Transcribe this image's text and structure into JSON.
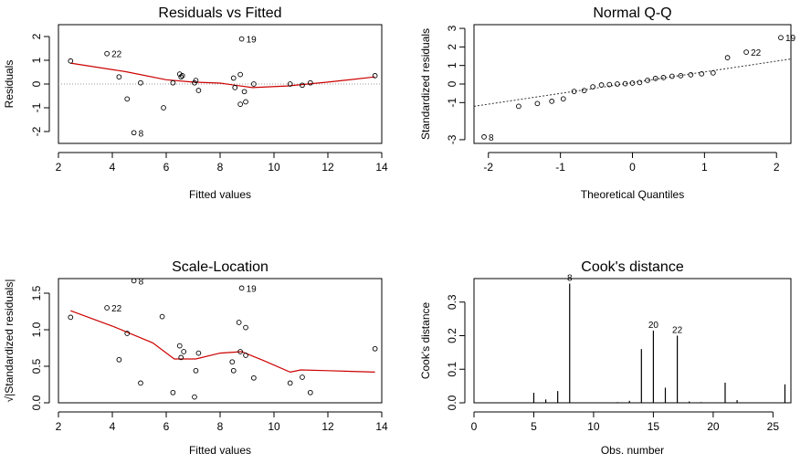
{
  "chart_data": [
    {
      "type": "scatter",
      "title": "Residuals vs Fitted",
      "xlabel": "Fitted values",
      "ylabel": "Residuals",
      "xlim": [
        2,
        14
      ],
      "ylim": [
        -2.5,
        2.5
      ],
      "xticks": [
        "2",
        "4",
        "6",
        "8",
        "10",
        "12",
        "14"
      ],
      "yticks": [
        "-2",
        "-1",
        "0",
        "1",
        "2"
      ],
      "points": [
        {
          "x": 2.45,
          "y": 0.97
        },
        {
          "x": 4.25,
          "y": 0.3
        },
        {
          "x": 4.55,
          "y": -0.63
        },
        {
          "x": 5.05,
          "y": 0.05
        },
        {
          "x": 5.9,
          "y": -1.0
        },
        {
          "x": 6.25,
          "y": 0.05
        },
        {
          "x": 6.5,
          "y": 0.42
        },
        {
          "x": 6.55,
          "y": 0.3
        },
        {
          "x": 6.6,
          "y": 0.35
        },
        {
          "x": 7.05,
          "y": 0.05
        },
        {
          "x": 7.1,
          "y": 0.15
        },
        {
          "x": 7.2,
          "y": -0.27
        },
        {
          "x": 8.5,
          "y": 0.25
        },
        {
          "x": 8.55,
          "y": -0.15
        },
        {
          "x": 8.75,
          "y": -0.85
        },
        {
          "x": 8.75,
          "y": 0.4
        },
        {
          "x": 8.9,
          "y": -0.32
        },
        {
          "x": 8.95,
          "y": -0.75
        },
        {
          "x": 9.25,
          "y": 0.0
        },
        {
          "x": 10.6,
          "y": 0.0
        },
        {
          "x": 11.05,
          "y": -0.05
        },
        {
          "x": 11.35,
          "y": 0.05
        },
        {
          "x": 13.75,
          "y": 0.35
        },
        {
          "x": 3.8,
          "y": 1.28,
          "label": "22"
        },
        {
          "x": 4.8,
          "y": -2.05,
          "label": "8"
        },
        {
          "x": 8.8,
          "y": 1.9,
          "label": "19"
        }
      ],
      "smooth": [
        [
          2.45,
          0.88
        ],
        [
          4.5,
          0.52
        ],
        [
          6.0,
          0.18
        ],
        [
          7.0,
          0.08
        ],
        [
          8.0,
          0.04
        ],
        [
          9.2,
          -0.15
        ],
        [
          10.5,
          -0.08
        ],
        [
          12.0,
          0.08
        ],
        [
          13.75,
          0.3
        ]
      ],
      "reference_y": 0
    },
    {
      "type": "scatter",
      "title": "Normal Q-Q",
      "xlabel": "Theoretical Quantiles",
      "ylabel": "Standardized residuals",
      "xlim": [
        -2.2,
        2.2
      ],
      "ylim": [
        -3.2,
        3.2
      ],
      "xticks": [
        "-2",
        "-1",
        "0",
        "1",
        "2"
      ],
      "yticks": [
        "-3",
        "-1",
        "0",
        "1",
        "2",
        "3"
      ],
      "points": [
        {
          "x": -1.58,
          "y": -1.2
        },
        {
          "x": -1.32,
          "y": -1.05
        },
        {
          "x": -1.12,
          "y": -0.93
        },
        {
          "x": -0.96,
          "y": -0.8
        },
        {
          "x": -0.81,
          "y": -0.4
        },
        {
          "x": -0.67,
          "y": -0.35
        },
        {
          "x": -0.55,
          "y": -0.15
        },
        {
          "x": -0.43,
          "y": -0.05
        },
        {
          "x": -0.32,
          "y": -0.03
        },
        {
          "x": -0.21,
          "y": 0.0
        },
        {
          "x": -0.1,
          "y": 0.02
        },
        {
          "x": 0.0,
          "y": 0.05
        },
        {
          "x": 0.1,
          "y": 0.08
        },
        {
          "x": 0.21,
          "y": 0.2
        },
        {
          "x": 0.32,
          "y": 0.3
        },
        {
          "x": 0.43,
          "y": 0.35
        },
        {
          "x": 0.55,
          "y": 0.42
        },
        {
          "x": 0.67,
          "y": 0.45
        },
        {
          "x": 0.81,
          "y": 0.5
        },
        {
          "x": 0.96,
          "y": 0.55
        },
        {
          "x": 1.12,
          "y": 0.6
        },
        {
          "x": 1.32,
          "y": 1.42
        },
        {
          "x": 1.58,
          "y": 1.72,
          "label": "22"
        },
        {
          "x": 2.06,
          "y": 2.5,
          "label": "19"
        },
        {
          "x": -2.06,
          "y": -2.85,
          "label": "8"
        }
      ],
      "reference_line": [
        [
          -2.2,
          -1.2
        ],
        [
          2.2,
          1.35
        ]
      ]
    },
    {
      "type": "scatter",
      "title": "Scale-Location",
      "xlabel": "Fitted values",
      "ylabel": "√|Standardized residuals|",
      "xlim": [
        2,
        14
      ],
      "ylim": [
        0,
        1.7
      ],
      "xticks": [
        "2",
        "4",
        "6",
        "8",
        "10",
        "12",
        "14"
      ],
      "yticks": [
        "0.0",
        "0.5",
        "1.0",
        "1.5"
      ],
      "points": [
        {
          "x": 2.45,
          "y": 1.17
        },
        {
          "x": 4.25,
          "y": 0.59
        },
        {
          "x": 4.55,
          "y": 0.95
        },
        {
          "x": 5.05,
          "y": 0.27
        },
        {
          "x": 5.85,
          "y": 1.18
        },
        {
          "x": 6.25,
          "y": 0.14
        },
        {
          "x": 6.5,
          "y": 0.78
        },
        {
          "x": 6.55,
          "y": 0.62
        },
        {
          "x": 6.65,
          "y": 0.7
        },
        {
          "x": 7.05,
          "y": 0.08
        },
        {
          "x": 7.1,
          "y": 0.44
        },
        {
          "x": 7.2,
          "y": 0.68
        },
        {
          "x": 8.45,
          "y": 0.56
        },
        {
          "x": 8.5,
          "y": 0.44
        },
        {
          "x": 8.7,
          "y": 1.1
        },
        {
          "x": 8.75,
          "y": 0.7
        },
        {
          "x": 8.95,
          "y": 1.03
        },
        {
          "x": 8.95,
          "y": 0.65
        },
        {
          "x": 9.25,
          "y": 0.34
        },
        {
          "x": 10.6,
          "y": 0.27
        },
        {
          "x": 11.05,
          "y": 0.35
        },
        {
          "x": 11.35,
          "y": 0.14
        },
        {
          "x": 13.75,
          "y": 0.74
        },
        {
          "x": 3.8,
          "y": 1.3,
          "label": "22"
        },
        {
          "x": 4.8,
          "y": 1.67,
          "label": "8"
        },
        {
          "x": 8.8,
          "y": 1.57,
          "label": "19"
        }
      ],
      "smooth": [
        [
          2.45,
          1.26
        ],
        [
          4.0,
          1.05
        ],
        [
          5.5,
          0.82
        ],
        [
          6.3,
          0.6
        ],
        [
          7.1,
          0.6
        ],
        [
          8.0,
          0.68
        ],
        [
          8.8,
          0.7
        ],
        [
          9.6,
          0.58
        ],
        [
          10.6,
          0.42
        ],
        [
          11.0,
          0.45
        ],
        [
          12.0,
          0.44
        ],
        [
          13.75,
          0.42
        ]
      ]
    },
    {
      "type": "bar",
      "title": "Cook's distance",
      "xlabel": "Obs. number",
      "ylabel": "Cook's distance",
      "xlim": [
        0,
        26.5
      ],
      "ylim": [
        0,
        0.37
      ],
      "xticks": [
        "0",
        "5",
        "10",
        "15",
        "20",
        "25"
      ],
      "yticks": [
        "0.0",
        "0.1",
        "0.2",
        "0.3"
      ],
      "x": [
        1,
        2,
        3,
        4,
        5,
        6,
        7,
        8,
        9,
        10,
        11,
        12,
        13,
        14,
        15,
        16,
        17,
        18,
        19,
        20,
        21,
        22,
        23,
        24,
        25,
        26
      ],
      "values": [
        0.001,
        0.001,
        0.001,
        0.001,
        0.03,
        0.01,
        0.035,
        0.355,
        0.001,
        0.001,
        0.001,
        0.002,
        0.006,
        0.16,
        0.215,
        0.045,
        0.2,
        0.004,
        0.002,
        0.001,
        0.06,
        0.008,
        0.001,
        0.001,
        0.001,
        0.055
      ],
      "labels": [
        {
          "x": 8,
          "label": "8"
        },
        {
          "x": 15,
          "label": "20"
        },
        {
          "x": 17,
          "label": "22"
        }
      ]
    }
  ]
}
